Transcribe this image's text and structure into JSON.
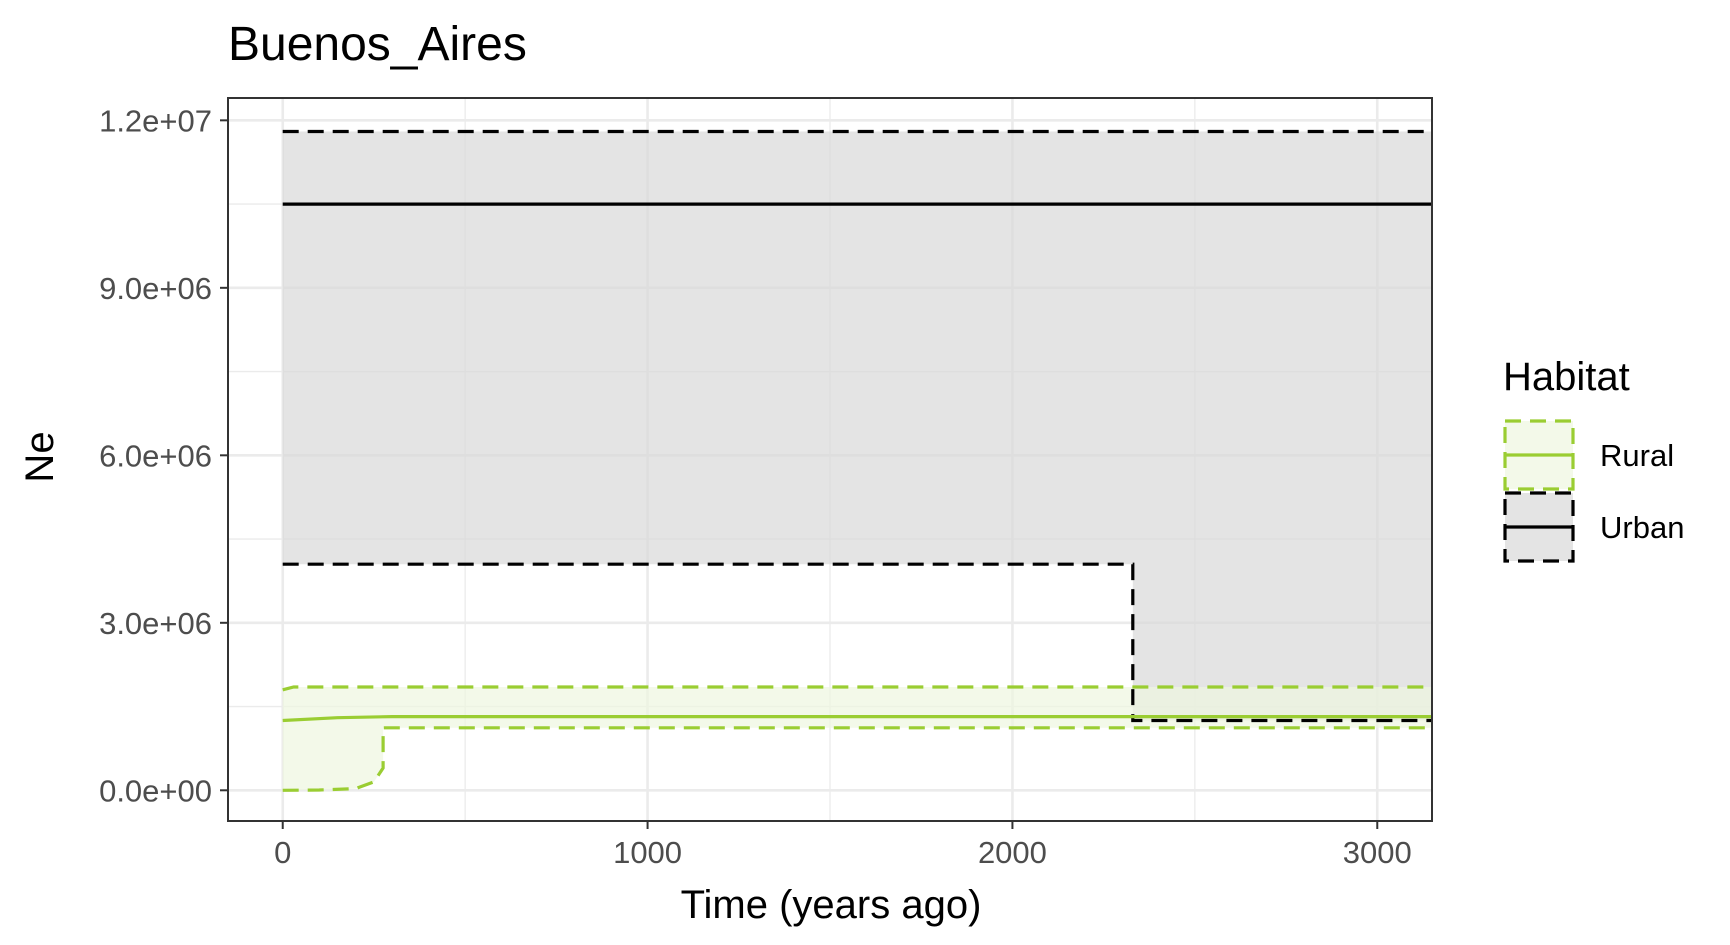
{
  "chart_data": {
    "type": "line",
    "title": "Buenos_Aires",
    "xlabel": "Time (years ago)",
    "ylabel": "Ne",
    "xlim": [
      -150,
      3150
    ],
    "ylim": [
      -550000,
      12400000
    ],
    "x_ticks": [
      0,
      1000,
      2000,
      3000
    ],
    "x_tick_labels": [
      "0",
      "1000",
      "2000",
      "3000"
    ],
    "y_ticks": [
      0,
      3000000,
      6000000,
      9000000,
      12000000
    ],
    "y_tick_labels": [
      "0.0e+00",
      "3.0e+06",
      "6.0e+06",
      "9.0e+06",
      "1.2e+07"
    ],
    "grid": true,
    "legend": {
      "title": "Habitat",
      "placement": "right",
      "entries": [
        "Rural",
        "Urban"
      ]
    },
    "series": [
      {
        "name": "Urban",
        "color": "#000000",
        "fill": "#d9d9d9",
        "median": [
          [
            0,
            10500000
          ],
          [
            3150,
            10500000
          ]
        ],
        "upper": [
          [
            0,
            11800000
          ],
          [
            3150,
            11800000
          ]
        ],
        "lower": [
          [
            0,
            4050000
          ],
          [
            2330,
            4050000
          ],
          [
            2330,
            1250000
          ],
          [
            3150,
            1250000
          ]
        ]
      },
      {
        "name": "Rural",
        "color": "#9acd32",
        "fill": "#eef6e0",
        "median": [
          [
            0,
            1250000
          ],
          [
            150,
            1300000
          ],
          [
            300,
            1320000
          ],
          [
            3150,
            1320000
          ]
        ],
        "upper": [
          [
            0,
            1800000
          ],
          [
            30,
            1850000
          ],
          [
            3150,
            1850000
          ]
        ],
        "lower": [
          [
            0,
            0
          ],
          [
            100,
            5000
          ],
          [
            200,
            30000
          ],
          [
            250,
            150000
          ],
          [
            275,
            400000
          ],
          [
            275,
            1120000
          ],
          [
            3150,
            1120000
          ]
        ]
      }
    ]
  }
}
